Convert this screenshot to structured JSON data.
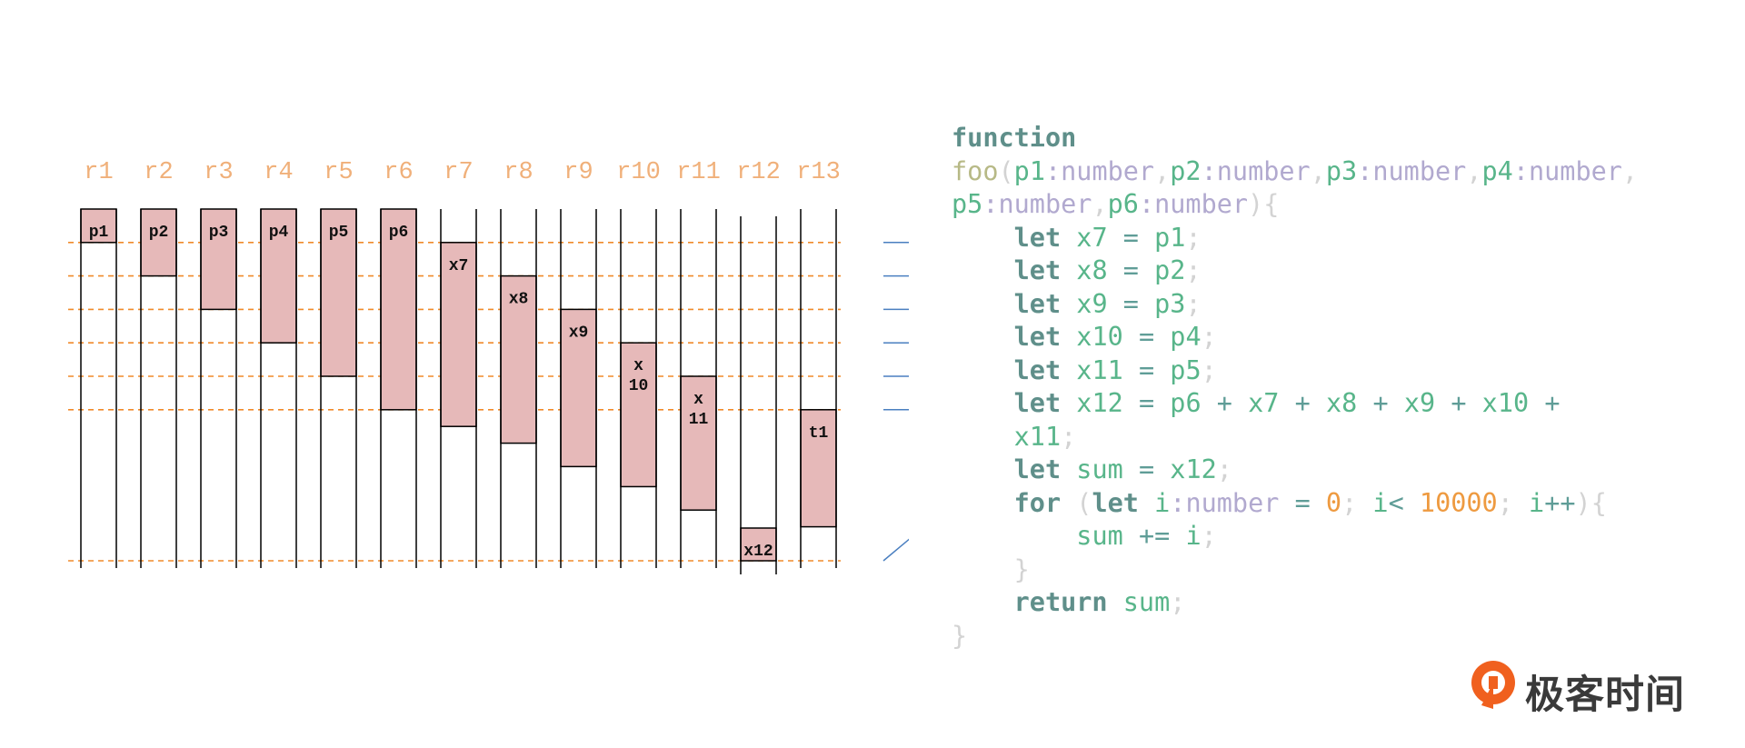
{
  "diagram": {
    "registers": [
      "r1",
      "r2",
      "r3",
      "r4",
      "r5",
      "r6",
      "r7",
      "r8",
      "r9",
      "r10",
      "r11",
      "r12",
      "r13"
    ],
    "live_ranges": [
      {
        "name": "p1",
        "register": "r1",
        "start": 0,
        "end": 1
      },
      {
        "name": "p2",
        "register": "r2",
        "start": 0,
        "end": 2
      },
      {
        "name": "p3",
        "register": "r3",
        "start": 0,
        "end": 3
      },
      {
        "name": "p4",
        "register": "r4",
        "start": 0,
        "end": 4
      },
      {
        "name": "p5",
        "register": "r5",
        "start": 0,
        "end": 5
      },
      {
        "name": "p6",
        "register": "r6",
        "start": 0,
        "end": 6
      },
      {
        "name": "x7",
        "register": "r7",
        "start": 1,
        "end": 6.5
      },
      {
        "name": "x8",
        "register": "r8",
        "start": 2,
        "end": 7
      },
      {
        "name": "x9",
        "register": "r9",
        "start": 3,
        "end": 7.7
      },
      {
        "name": "x\n10",
        "register": "r10",
        "start": 4,
        "end": 8.3
      },
      {
        "name": "x\n11",
        "register": "r11",
        "start": 5,
        "end": 9
      },
      {
        "name": "x12",
        "register": "r12",
        "start": 9.5,
        "end": 10.5
      },
      {
        "name": "t1",
        "register": "r13",
        "start": 6,
        "end": 9.5
      }
    ],
    "arrow_count": 7,
    "line_color": "#000000",
    "dash_color": "#f08a2a",
    "box_fill": "#e6b9b9",
    "arrow_color": "#4a7fc0"
  },
  "code": {
    "lines": [
      [
        [
          "kw",
          "function"
        ]
      ],
      [
        [
          "fn",
          "foo"
        ],
        [
          "pun",
          "("
        ],
        [
          "id",
          "p1"
        ],
        [
          "ty",
          ":number"
        ],
        [
          "pun",
          ","
        ],
        [
          "id",
          "p2"
        ],
        [
          "ty",
          ":number"
        ],
        [
          "pun",
          ","
        ],
        [
          "id",
          "p3"
        ],
        [
          "ty",
          ":number"
        ],
        [
          "pun",
          ","
        ],
        [
          "id",
          "p4"
        ],
        [
          "ty",
          ":number"
        ],
        [
          "pun",
          ","
        ]
      ],
      [
        [
          "id",
          "p5"
        ],
        [
          "ty",
          ":number"
        ],
        [
          "pun",
          ","
        ],
        [
          "id",
          "p6"
        ],
        [
          "ty",
          ":number"
        ],
        [
          "pun",
          "){"
        ]
      ],
      [
        [
          "pun",
          "    "
        ],
        [
          "kw",
          "let"
        ],
        [
          "pun",
          " "
        ],
        [
          "id",
          "x7"
        ],
        [
          "pun",
          " "
        ],
        [
          "op",
          "="
        ],
        [
          "pun",
          " "
        ],
        [
          "id",
          "p1"
        ],
        [
          "pun",
          ";"
        ]
      ],
      [
        [
          "pun",
          "    "
        ],
        [
          "kw",
          "let"
        ],
        [
          "pun",
          " "
        ],
        [
          "id",
          "x8"
        ],
        [
          "pun",
          " "
        ],
        [
          "op",
          "="
        ],
        [
          "pun",
          " "
        ],
        [
          "id",
          "p2"
        ],
        [
          "pun",
          ";"
        ]
      ],
      [
        [
          "pun",
          "    "
        ],
        [
          "kw",
          "let"
        ],
        [
          "pun",
          " "
        ],
        [
          "id",
          "x9"
        ],
        [
          "pun",
          " "
        ],
        [
          "op",
          "="
        ],
        [
          "pun",
          " "
        ],
        [
          "id",
          "p3"
        ],
        [
          "pun",
          ";"
        ]
      ],
      [
        [
          "pun",
          "    "
        ],
        [
          "kw",
          "let"
        ],
        [
          "pun",
          " "
        ],
        [
          "id",
          "x10"
        ],
        [
          "pun",
          " "
        ],
        [
          "op",
          "="
        ],
        [
          "pun",
          " "
        ],
        [
          "id",
          "p4"
        ],
        [
          "pun",
          ";"
        ]
      ],
      [
        [
          "pun",
          "    "
        ],
        [
          "kw",
          "let"
        ],
        [
          "pun",
          " "
        ],
        [
          "id",
          "x11"
        ],
        [
          "pun",
          " "
        ],
        [
          "op",
          "="
        ],
        [
          "pun",
          " "
        ],
        [
          "id",
          "p5"
        ],
        [
          "pun",
          ";"
        ]
      ],
      [
        [
          "pun",
          "    "
        ],
        [
          "kw",
          "let"
        ],
        [
          "pun",
          " "
        ],
        [
          "id",
          "x12"
        ],
        [
          "pun",
          " "
        ],
        [
          "op",
          "="
        ],
        [
          "pun",
          " "
        ],
        [
          "id",
          "p6"
        ],
        [
          "pun",
          " "
        ],
        [
          "op",
          "+"
        ],
        [
          "pun",
          " "
        ],
        [
          "id",
          "x7"
        ],
        [
          "pun",
          " "
        ],
        [
          "op",
          "+"
        ],
        [
          "pun",
          " "
        ],
        [
          "id",
          "x8"
        ],
        [
          "pun",
          " "
        ],
        [
          "op",
          "+"
        ],
        [
          "pun",
          " "
        ],
        [
          "id",
          "x9"
        ],
        [
          "pun",
          " "
        ],
        [
          "op",
          "+"
        ],
        [
          "pun",
          " "
        ],
        [
          "id",
          "x10"
        ],
        [
          "pun",
          " "
        ],
        [
          "op",
          "+"
        ]
      ],
      [
        [
          "pun",
          "    "
        ],
        [
          "id",
          "x11"
        ],
        [
          "pun",
          ";"
        ]
      ],
      [
        [
          "pun",
          "    "
        ],
        [
          "kw",
          "let"
        ],
        [
          "pun",
          " "
        ],
        [
          "id",
          "sum"
        ],
        [
          "pun",
          " "
        ],
        [
          "op",
          "="
        ],
        [
          "pun",
          " "
        ],
        [
          "id",
          "x12"
        ],
        [
          "pun",
          ";"
        ]
      ],
      [
        [
          "pun",
          "    "
        ],
        [
          "kw",
          "for"
        ],
        [
          "pun",
          " ("
        ],
        [
          "kw",
          "let"
        ],
        [
          "pun",
          " "
        ],
        [
          "id",
          "i"
        ],
        [
          "ty",
          ":number"
        ],
        [
          "pun",
          " "
        ],
        [
          "op",
          "="
        ],
        [
          "pun",
          " "
        ],
        [
          "num",
          "0"
        ],
        [
          "pun",
          "; "
        ],
        [
          "id",
          "i"
        ],
        [
          "op",
          "<"
        ],
        [
          "pun",
          " "
        ],
        [
          "num",
          "10000"
        ],
        [
          "pun",
          "; "
        ],
        [
          "id",
          "i"
        ],
        [
          "op",
          "++"
        ],
        [
          "pun",
          "){"
        ]
      ],
      [
        [
          "pun",
          "        "
        ],
        [
          "id",
          "sum"
        ],
        [
          "pun",
          " "
        ],
        [
          "op",
          "+="
        ],
        [
          "pun",
          " "
        ],
        [
          "id",
          "i"
        ],
        [
          "pun",
          ";"
        ]
      ],
      [
        [
          "pun",
          "    }"
        ]
      ],
      [
        [
          "pun",
          "    "
        ],
        [
          "kw",
          "return"
        ],
        [
          "pun",
          " "
        ],
        [
          "id",
          "sum"
        ],
        [
          "pun",
          ";"
        ]
      ],
      [
        [
          "pun",
          "}"
        ]
      ]
    ]
  },
  "logo": {
    "text": "极客时间",
    "icon": "geektime-logo-icon",
    "color": "#f0601e"
  }
}
